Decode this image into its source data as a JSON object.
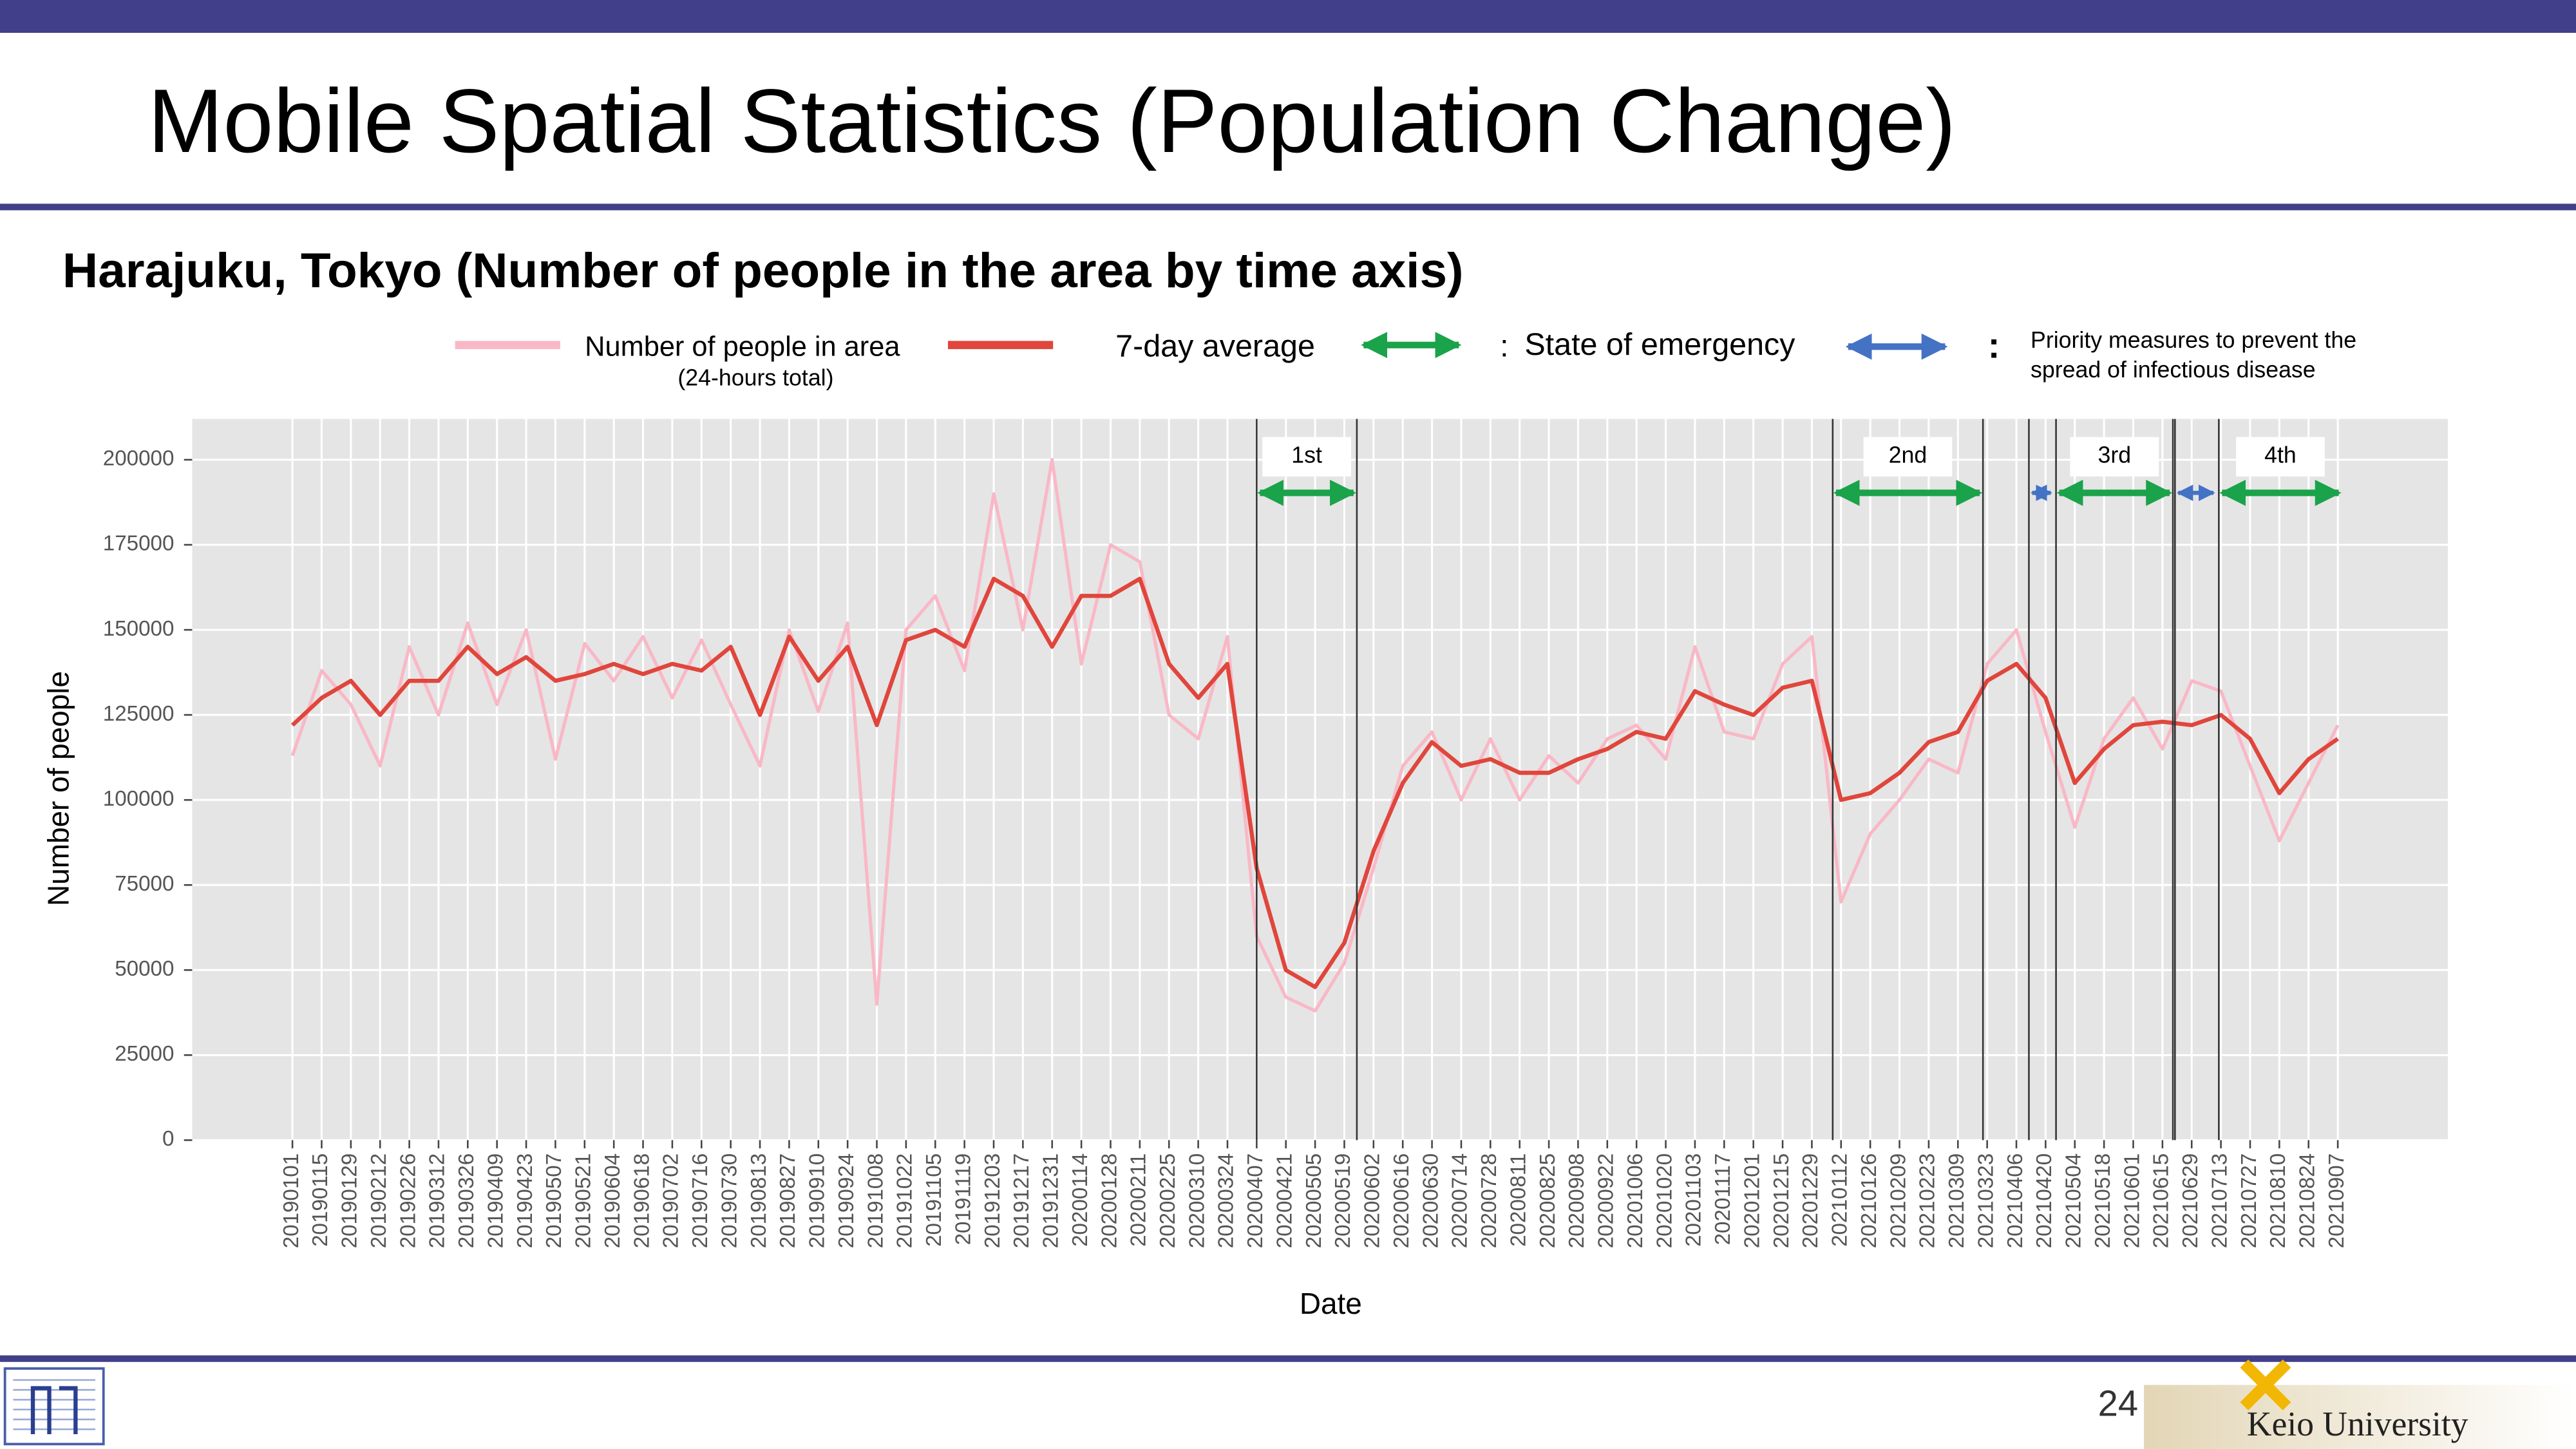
{
  "page": {
    "title": "Mobile Spatial Statistics (Population Change)",
    "subtitle": "Harajuku, Tokyo (Number of people in the area by time axis)",
    "page_number": "24",
    "logo_text": "Keio University"
  },
  "chart_data": {
    "type": "line",
    "x_label": "Date",
    "y_label": "Number of people",
    "legend_note": "(24-hours total)",
    "separator": ":",
    "categories": [
      "20190101",
      "20190115",
      "20190129",
      "20190212",
      "20190226",
      "20190312",
      "20190326",
      "20190409",
      "20190423",
      "20190507",
      "20190521",
      "20190604",
      "20190618",
      "20190702",
      "20190716",
      "20190730",
      "20190813",
      "20190827",
      "20190910",
      "20190924",
      "20191008",
      "20191022",
      "20191105",
      "20191119",
      "20191203",
      "20191217",
      "20191231",
      "20200114",
      "20200128",
      "20200211",
      "20200225",
      "20200310",
      "20200324",
      "20200407",
      "20200421",
      "20200505",
      "20200519",
      "20200602",
      "20200616",
      "20200630",
      "20200714",
      "20200728",
      "20200811",
      "20200825",
      "20200908",
      "20200922",
      "20201006",
      "20201020",
      "20201103",
      "20201117",
      "20201201",
      "20201215",
      "20201229",
      "20210112",
      "20210126",
      "20210209",
      "20210223",
      "20210309",
      "20210323",
      "20210406",
      "20210420",
      "20210504",
      "20210518",
      "20210601",
      "20210615",
      "20210629",
      "20210713",
      "20210727",
      "20210810",
      "20210824",
      "20210907"
    ],
    "series": [
      {
        "name": "Number of people in area",
        "color": "#f9b8c6",
        "values": [
          113000,
          138000,
          128000,
          110000,
          145000,
          125000,
          152000,
          128000,
          150000,
          112000,
          146000,
          135000,
          148000,
          130000,
          147000,
          128000,
          110000,
          150000,
          126000,
          152000,
          40000,
          150000,
          160000,
          138000,
          190000,
          150000,
          200000,
          140000,
          175000,
          170000,
          125000,
          118000,
          148000,
          60000,
          42000,
          38000,
          52000,
          80000,
          110000,
          120000,
          100000,
          118000,
          100000,
          113000,
          105000,
          118000,
          122000,
          112000,
          145000,
          120000,
          118000,
          140000,
          148000,
          70000,
          90000,
          100000,
          112000,
          108000,
          140000,
          150000,
          120000,
          92000,
          118000,
          130000,
          115000,
          135000,
          132000,
          110000,
          88000,
          105000,
          122000
        ]
      },
      {
        "name": "7-day average",
        "color": "#e0463c",
        "values": [
          122000,
          130000,
          135000,
          125000,
          135000,
          135000,
          145000,
          137000,
          142000,
          135000,
          137000,
          140000,
          137000,
          140000,
          138000,
          145000,
          125000,
          148000,
          135000,
          145000,
          122000,
          147000,
          150000,
          145000,
          165000,
          160000,
          145000,
          160000,
          160000,
          165000,
          140000,
          130000,
          140000,
          80000,
          50000,
          45000,
          58000,
          85000,
          105000,
          117000,
          110000,
          112000,
          108000,
          108000,
          112000,
          115000,
          120000,
          118000,
          132000,
          128000,
          125000,
          133000,
          135000,
          100000,
          102000,
          108000,
          117000,
          120000,
          135000,
          140000,
          130000,
          105000,
          115000,
          122000,
          123000,
          122000,
          125000,
          118000,
          102000,
          112000,
          118000
        ]
      }
    ],
    "ylim": [
      0,
      212000
    ],
    "yticks": [
      0,
      25000,
      50000,
      75000,
      100000,
      125000,
      150000,
      175000,
      200000
    ],
    "grid": true,
    "periods": {
      "State of emergency": {
        "color": "#1aa34a",
        "ranges": [
          {
            "label": "1st",
            "start": "20200407",
            "end": "20200525"
          },
          {
            "label": "2nd",
            "start": "20210108",
            "end": "20210321"
          },
          {
            "label": "3rd",
            "start": "20210425",
            "end": "20210620"
          },
          {
            "label": "4th",
            "start": "20210712",
            "end": "20210909"
          }
        ]
      },
      "Priority measures to prevent the spread of infectious disease": {
        "color": "#4472c4",
        "legend_lines": [
          "Priority measures to prevent the",
          "spread of infectious disease"
        ],
        "ranges": [
          {
            "start": "20210412",
            "end": "20210424"
          },
          {
            "start": "20210621",
            "end": "20210711"
          }
        ]
      }
    }
  }
}
